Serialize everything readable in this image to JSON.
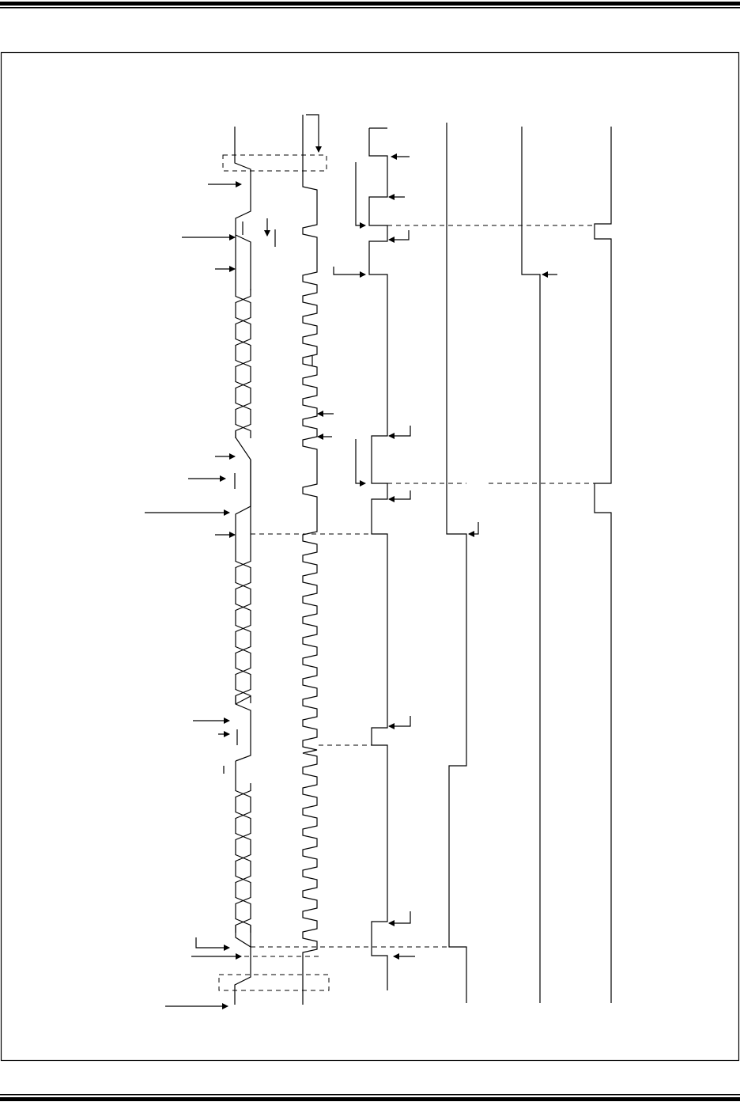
{
  "colors": {
    "line": "#000000",
    "background": "#ffffff"
  },
  "diagram": {
    "type": "timing-diagram",
    "signal_count": 6
  }
}
